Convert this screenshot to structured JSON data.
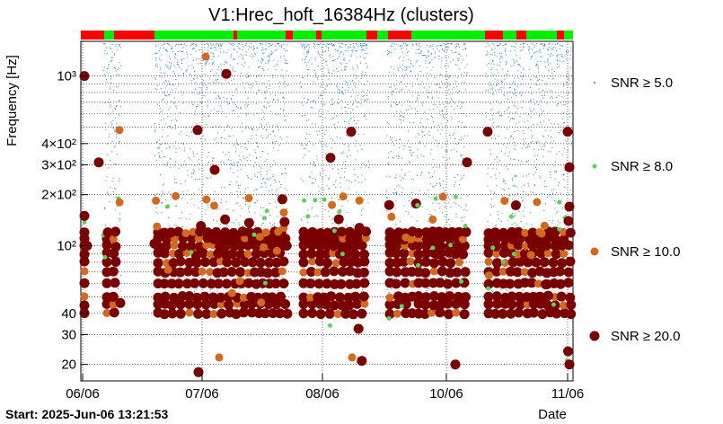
{
  "chart_data": {
    "type": "scatter",
    "title": "V1:Hrec_hoft_16384Hz (clusters)",
    "xlabel": "Date",
    "ylabel": "Frequency [Hz]",
    "y_scale": "log",
    "ylim": [
      16,
      1600
    ],
    "x_ticks": [
      "06/06",
      "07/06",
      "08/06",
      "10/06",
      "11/06"
    ],
    "y_ticks": [
      "20",
      "30",
      "40",
      "10²",
      "2×10²",
      "3×10²",
      "4×10²",
      "10³"
    ],
    "grid": true,
    "legend_position": "right",
    "start_label": "Start: 2025-Jun-06 13:21:53",
    "series": [
      {
        "name": "SNR ≥ 5.0",
        "color": "#1f77b4"
      },
      {
        "name": "SNR ≥ 8.0",
        "color": "#5fcf5f"
      },
      {
        "name": "SNR ≥ 10.0",
        "color": "#d2691e"
      },
      {
        "name": "SNR ≥ 20.0",
        "color": "#7a0000"
      }
    ],
    "clusters": [
      {
        "date": "06/06",
        "freq": 1000,
        "snr": 20
      },
      {
        "date": "07/06",
        "freq": 1030,
        "snr": 20
      },
      {
        "date": "07/06",
        "freq": 1300,
        "snr": 10
      },
      {
        "date": "06/06",
        "freq": 480,
        "snr": 10
      },
      {
        "date": "06/06",
        "freq": 310,
        "snr": 20
      },
      {
        "date": "07/06",
        "freq": 480,
        "snr": 20
      },
      {
        "date": "08/06",
        "freq": 470,
        "snr": 20
      },
      {
        "date": "08/06",
        "freq": 330,
        "snr": 20
      },
      {
        "date": "10/06",
        "freq": 470,
        "snr": 20
      },
      {
        "date": "10/06",
        "freq": 310,
        "snr": 20
      },
      {
        "date": "11/06",
        "freq": 470,
        "snr": 20
      },
      {
        "date": "11/06",
        "freq": 290,
        "snr": 20
      },
      {
        "date": "07/06",
        "freq": 280,
        "snr": 20
      },
      {
        "date": "06/06",
        "freq": 150,
        "snr": 20
      },
      {
        "date": "06/06",
        "freq": 120,
        "snr": 20
      },
      {
        "date": "06/06",
        "freq": 100,
        "snr": 20
      },
      {
        "date": "06/06",
        "freq": 46,
        "snr": 20
      },
      {
        "date": "07/06",
        "freq": 22,
        "snr": 10
      },
      {
        "date": "07/06",
        "freq": 18,
        "snr": 20
      },
      {
        "date": "08/06",
        "freq": 22,
        "snr": 10
      },
      {
        "date": "10/06",
        "freq": 20,
        "snr": 20
      },
      {
        "date": "11/06",
        "freq": 20,
        "snr": 20
      },
      {
        "date": "11/06",
        "freq": 170,
        "snr": 20
      },
      {
        "date": "11/06",
        "freq": 140,
        "snr": 20
      }
    ]
  }
}
